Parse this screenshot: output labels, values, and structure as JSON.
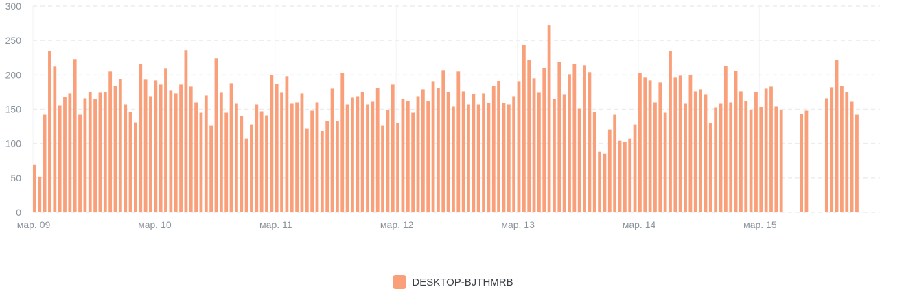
{
  "chart_data": {
    "type": "bar",
    "ylim": [
      0,
      300
    ],
    "y_ticks": [
      "0",
      "50",
      "100",
      "150",
      "200",
      "250",
      "300"
    ],
    "x_labels": [
      "мар. 09",
      "мар. 10",
      "мар. 11",
      "мар. 12",
      "мар. 13",
      "мар. 14",
      "мар. 15"
    ],
    "grid": true,
    "legend_position": "bottom",
    "series": [
      {
        "name": "DESKTOP-BJTHMRB",
        "color": "#f9a07a",
        "values": [
          69,
          52,
          142,
          235,
          212,
          155,
          168,
          173,
          223,
          142,
          166,
          175,
          165,
          174,
          175,
          205,
          184,
          194,
          157,
          146,
          131,
          216,
          193,
          169,
          192,
          186,
          209,
          177,
          173,
          186,
          236,
          183,
          160,
          145,
          170,
          126,
          224,
          174,
          145,
          188,
          158,
          140,
          107,
          128,
          157,
          147,
          141,
          200,
          187,
          174,
          198,
          158,
          160,
          173,
          122,
          148,
          160,
          118,
          133,
          180,
          133,
          203,
          157,
          167,
          169,
          175,
          157,
          161,
          181,
          126,
          149,
          186,
          130,
          165,
          162,
          145,
          169,
          179,
          162,
          190,
          181,
          207,
          175,
          154,
          205,
          176,
          157,
          172,
          157,
          173,
          159,
          184,
          191,
          159,
          157,
          169,
          190,
          244,
          222,
          195,
          174,
          210,
          272,
          165,
          219,
          171,
          201,
          216,
          151,
          214,
          204,
          146,
          88,
          85,
          120,
          142,
          104,
          102,
          107,
          128,
          203,
          196,
          192,
          160,
          189,
          145,
          235,
          196,
          199,
          158,
          200,
          176,
          179,
          171,
          130,
          152,
          158,
          213,
          160,
          206,
          176,
          162,
          149,
          175,
          153,
          180,
          183,
          154,
          149,
          null,
          null,
          null,
          143,
          148,
          null,
          null,
          null,
          166,
          182,
          222,
          184,
          175,
          161,
          142
        ]
      }
    ]
  }
}
